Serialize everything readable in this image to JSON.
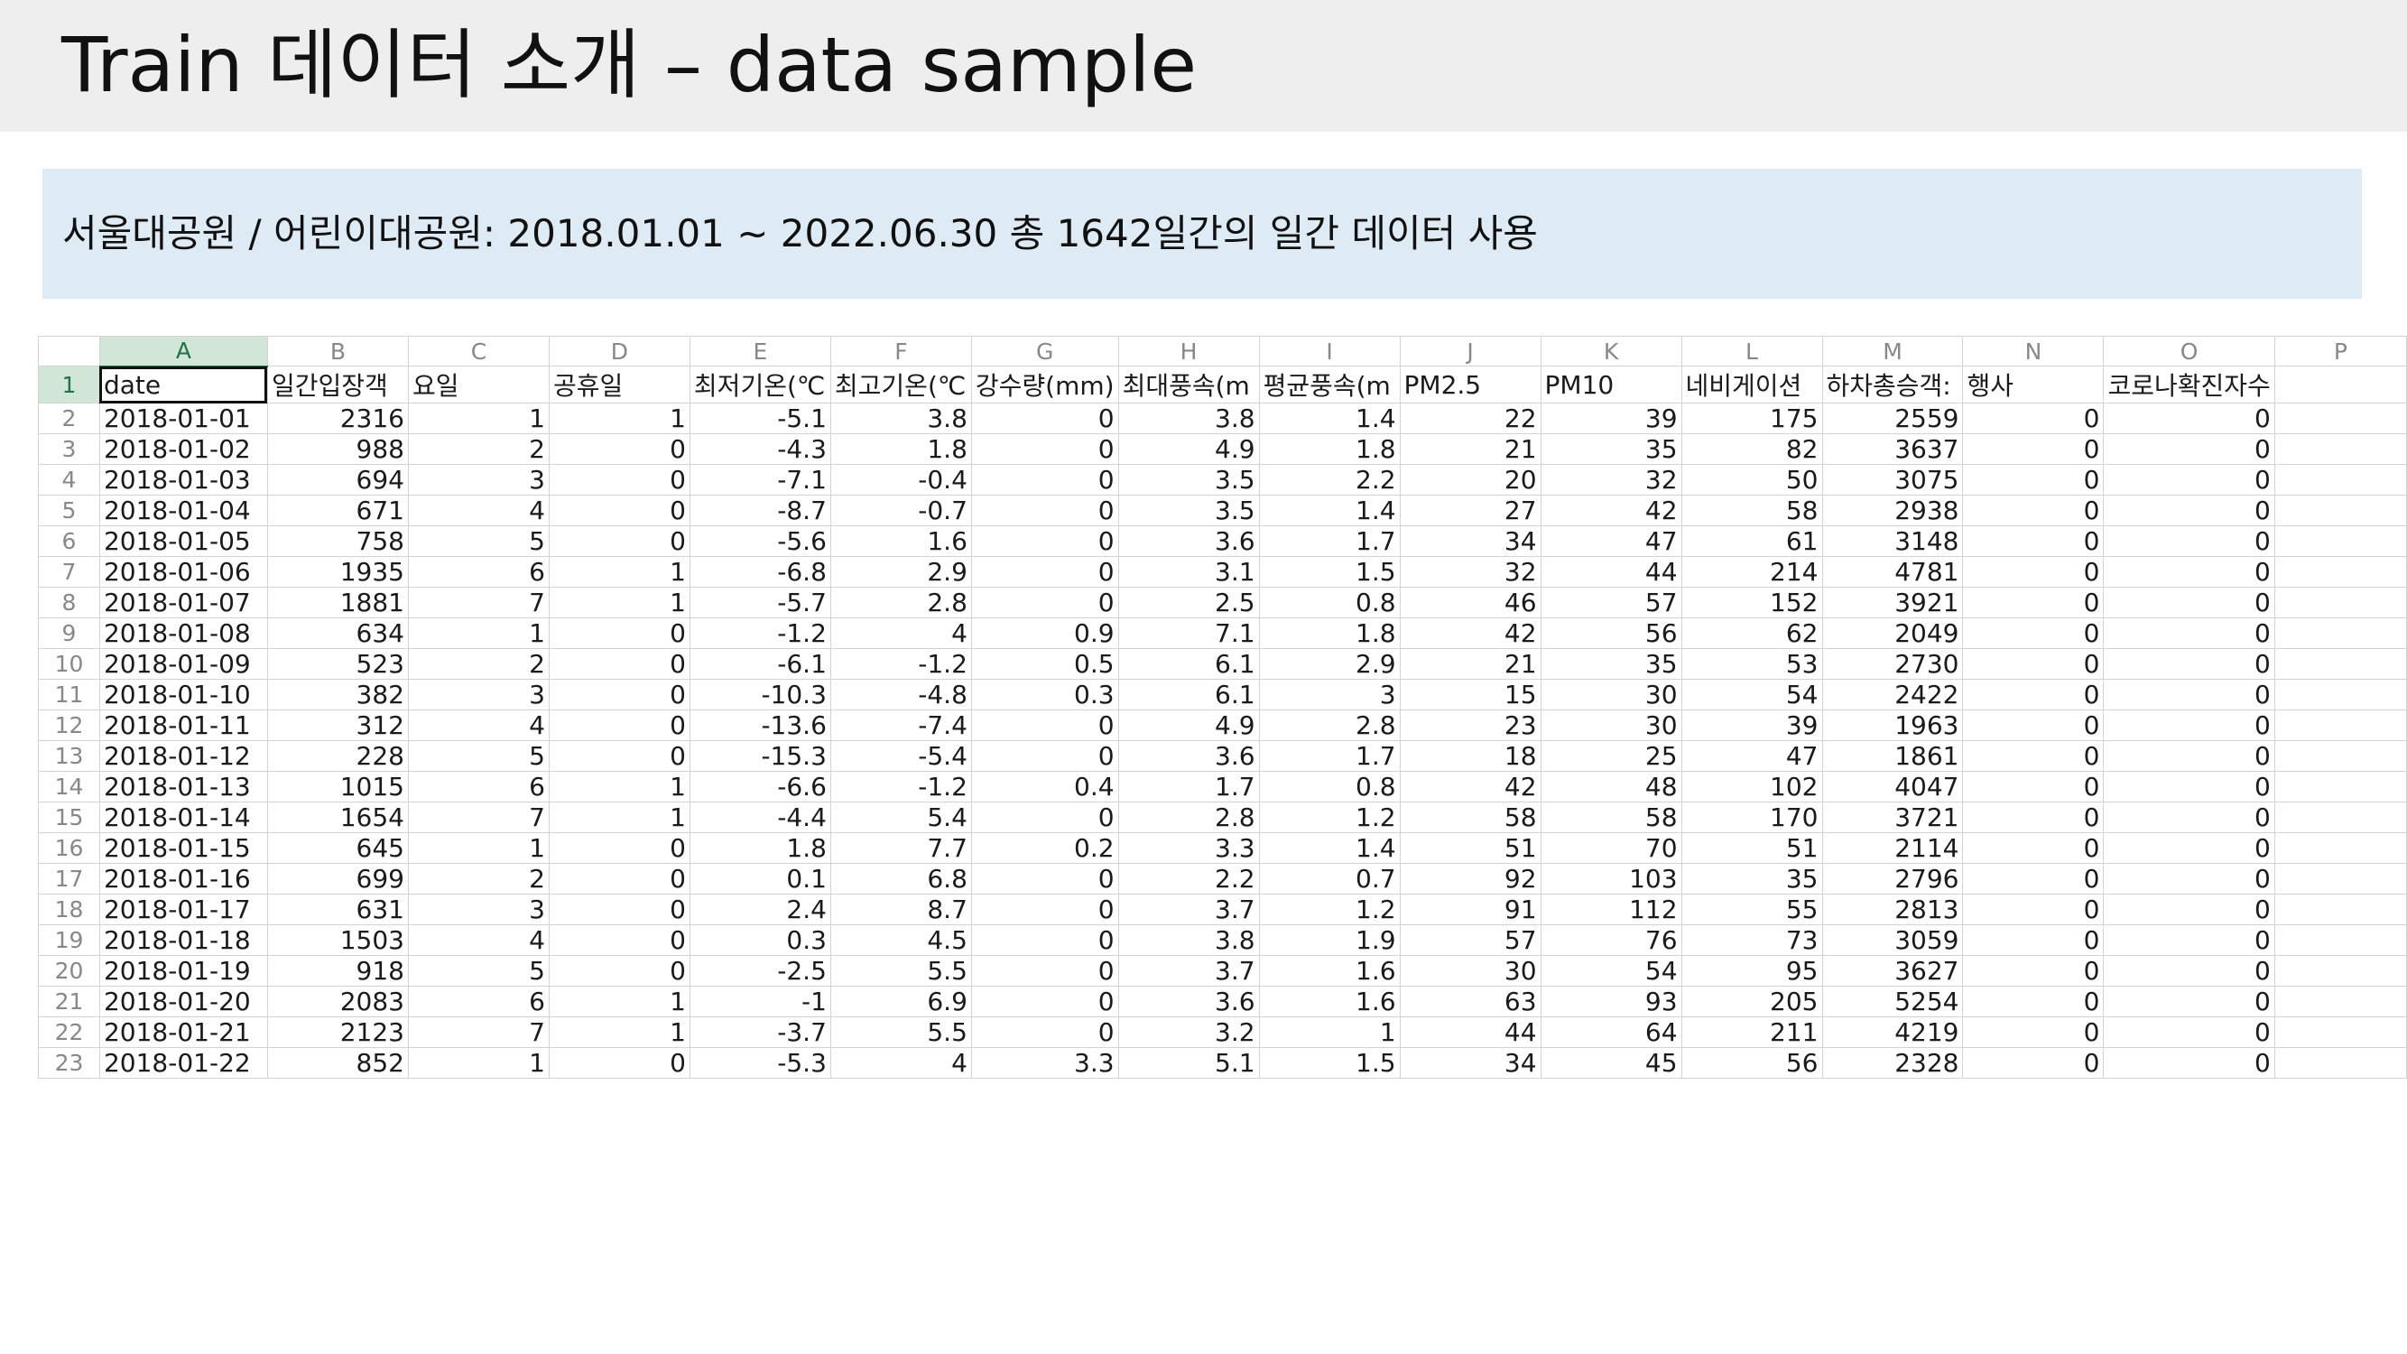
{
  "slide": {
    "title": "Train 데이터 소개 – data sample",
    "info": "서울대공원 / 어린이대공원: 2018.01.01 ~ 2022.06.30 총 1642일간의 일간 데이터 사용"
  },
  "spreadsheet": {
    "column_letters": [
      "A",
      "B",
      "C",
      "D",
      "E",
      "F",
      "G",
      "H",
      "I",
      "J",
      "K",
      "L",
      "M",
      "N",
      "O",
      "P"
    ],
    "header_row_number": "1",
    "headers": [
      "date",
      "일간입장객",
      "요일",
      "공휴일",
      "최저기온(℃",
      "최고기온(℃",
      "강수량(mm)",
      "최대풍속(m",
      "평균풍속(m",
      "PM2.5",
      "PM10",
      "네비게이션",
      "하차총승객:",
      "행사",
      "코로나확진자수",
      ""
    ],
    "rows": [
      {
        "n": "2",
        "cells": [
          "2018-01-01",
          "2316",
          "1",
          "1",
          "-5.1",
          "3.8",
          "0",
          "3.8",
          "1.4",
          "22",
          "39",
          "175",
          "2559",
          "0",
          "0",
          ""
        ]
      },
      {
        "n": "3",
        "cells": [
          "2018-01-02",
          "988",
          "2",
          "0",
          "-4.3",
          "1.8",
          "0",
          "4.9",
          "1.8",
          "21",
          "35",
          "82",
          "3637",
          "0",
          "0",
          ""
        ]
      },
      {
        "n": "4",
        "cells": [
          "2018-01-03",
          "694",
          "3",
          "0",
          "-7.1",
          "-0.4",
          "0",
          "3.5",
          "2.2",
          "20",
          "32",
          "50",
          "3075",
          "0",
          "0",
          ""
        ]
      },
      {
        "n": "5",
        "cells": [
          "2018-01-04",
          "671",
          "4",
          "0",
          "-8.7",
          "-0.7",
          "0",
          "3.5",
          "1.4",
          "27",
          "42",
          "58",
          "2938",
          "0",
          "0",
          ""
        ]
      },
      {
        "n": "6",
        "cells": [
          "2018-01-05",
          "758",
          "5",
          "0",
          "-5.6",
          "1.6",
          "0",
          "3.6",
          "1.7",
          "34",
          "47",
          "61",
          "3148",
          "0",
          "0",
          ""
        ]
      },
      {
        "n": "7",
        "cells": [
          "2018-01-06",
          "1935",
          "6",
          "1",
          "-6.8",
          "2.9",
          "0",
          "3.1",
          "1.5",
          "32",
          "44",
          "214",
          "4781",
          "0",
          "0",
          ""
        ]
      },
      {
        "n": "8",
        "cells": [
          "2018-01-07",
          "1881",
          "7",
          "1",
          "-5.7",
          "2.8",
          "0",
          "2.5",
          "0.8",
          "46",
          "57",
          "152",
          "3921",
          "0",
          "0",
          ""
        ]
      },
      {
        "n": "9",
        "cells": [
          "2018-01-08",
          "634",
          "1",
          "0",
          "-1.2",
          "4",
          "0.9",
          "7.1",
          "1.8",
          "42",
          "56",
          "62",
          "2049",
          "0",
          "0",
          ""
        ]
      },
      {
        "n": "10",
        "cells": [
          "2018-01-09",
          "523",
          "2",
          "0",
          "-6.1",
          "-1.2",
          "0.5",
          "6.1",
          "2.9",
          "21",
          "35",
          "53",
          "2730",
          "0",
          "0",
          ""
        ]
      },
      {
        "n": "11",
        "cells": [
          "2018-01-10",
          "382",
          "3",
          "0",
          "-10.3",
          "-4.8",
          "0.3",
          "6.1",
          "3",
          "15",
          "30",
          "54",
          "2422",
          "0",
          "0",
          ""
        ]
      },
      {
        "n": "12",
        "cells": [
          "2018-01-11",
          "312",
          "4",
          "0",
          "-13.6",
          "-7.4",
          "0",
          "4.9",
          "2.8",
          "23",
          "30",
          "39",
          "1963",
          "0",
          "0",
          ""
        ]
      },
      {
        "n": "13",
        "cells": [
          "2018-01-12",
          "228",
          "5",
          "0",
          "-15.3",
          "-5.4",
          "0",
          "3.6",
          "1.7",
          "18",
          "25",
          "47",
          "1861",
          "0",
          "0",
          ""
        ]
      },
      {
        "n": "14",
        "cells": [
          "2018-01-13",
          "1015",
          "6",
          "1",
          "-6.6",
          "-1.2",
          "0.4",
          "1.7",
          "0.8",
          "42",
          "48",
          "102",
          "4047",
          "0",
          "0",
          ""
        ]
      },
      {
        "n": "15",
        "cells": [
          "2018-01-14",
          "1654",
          "7",
          "1",
          "-4.4",
          "5.4",
          "0",
          "2.8",
          "1.2",
          "58",
          "58",
          "170",
          "3721",
          "0",
          "0",
          ""
        ]
      },
      {
        "n": "16",
        "cells": [
          "2018-01-15",
          "645",
          "1",
          "0",
          "1.8",
          "7.7",
          "0.2",
          "3.3",
          "1.4",
          "51",
          "70",
          "51",
          "2114",
          "0",
          "0",
          ""
        ]
      },
      {
        "n": "17",
        "cells": [
          "2018-01-16",
          "699",
          "2",
          "0",
          "0.1",
          "6.8",
          "0",
          "2.2",
          "0.7",
          "92",
          "103",
          "35",
          "2796",
          "0",
          "0",
          ""
        ]
      },
      {
        "n": "18",
        "cells": [
          "2018-01-17",
          "631",
          "3",
          "0",
          "2.4",
          "8.7",
          "0",
          "3.7",
          "1.2",
          "91",
          "112",
          "55",
          "2813",
          "0",
          "0",
          ""
        ]
      },
      {
        "n": "19",
        "cells": [
          "2018-01-18",
          "1503",
          "4",
          "0",
          "0.3",
          "4.5",
          "0",
          "3.8",
          "1.9",
          "57",
          "76",
          "73",
          "3059",
          "0",
          "0",
          ""
        ]
      },
      {
        "n": "20",
        "cells": [
          "2018-01-19",
          "918",
          "5",
          "0",
          "-2.5",
          "5.5",
          "0",
          "3.7",
          "1.6",
          "30",
          "54",
          "95",
          "3627",
          "0",
          "0",
          ""
        ]
      },
      {
        "n": "21",
        "cells": [
          "2018-01-20",
          "2083",
          "6",
          "1",
          "-1",
          "6.9",
          "0",
          "3.6",
          "1.6",
          "63",
          "93",
          "205",
          "5254",
          "0",
          "0",
          ""
        ]
      },
      {
        "n": "22",
        "cells": [
          "2018-01-21",
          "2123",
          "7",
          "1",
          "-3.7",
          "5.5",
          "0",
          "3.2",
          "1",
          "44",
          "64",
          "211",
          "4219",
          "0",
          "0",
          ""
        ]
      },
      {
        "n": "23",
        "cells": [
          "2018-01-22",
          "852",
          "1",
          "0",
          "-5.3",
          "4",
          "3.3",
          "5.1",
          "1.5",
          "34",
          "45",
          "56",
          "2328",
          "0",
          "0",
          ""
        ]
      }
    ]
  }
}
